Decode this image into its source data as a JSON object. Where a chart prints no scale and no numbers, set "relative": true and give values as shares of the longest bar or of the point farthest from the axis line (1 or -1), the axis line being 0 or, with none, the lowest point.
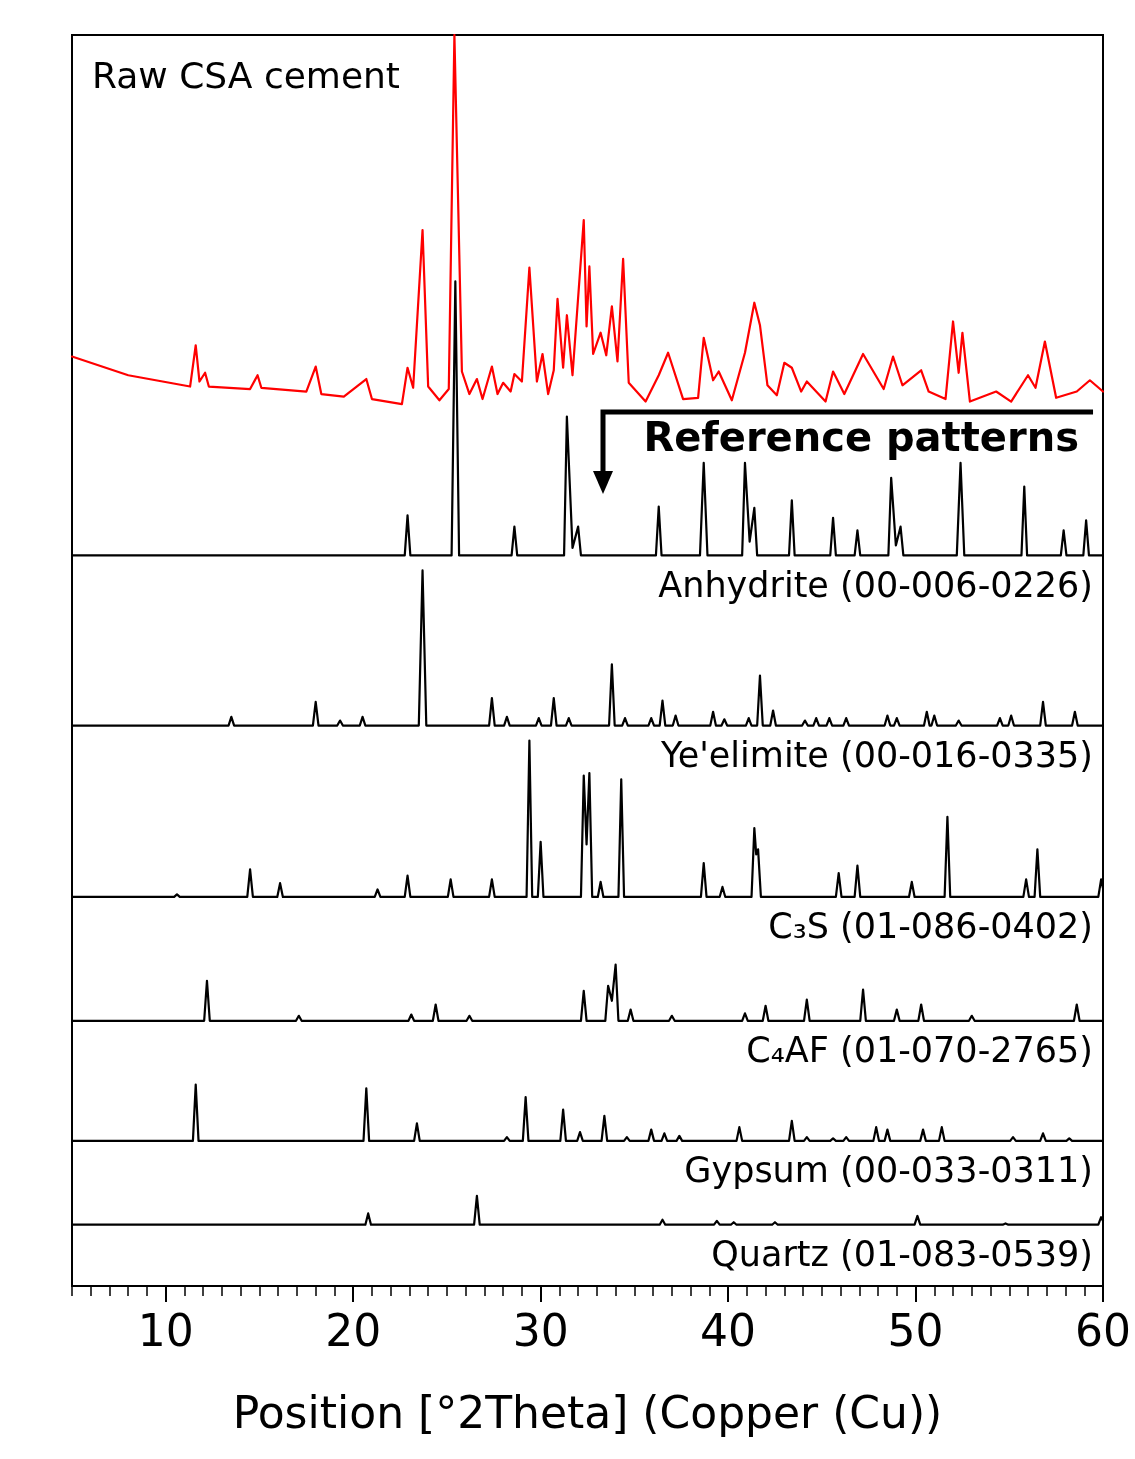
{
  "chart_data": {
    "type": "line",
    "relative": true,
    "xlabel": "Position [°2Theta] (Copper (Cu))",
    "xlim": [
      5,
      60
    ],
    "xticks": [
      {
        "value": 5,
        "label": null
      },
      {
        "value": 6,
        "label": null
      },
      {
        "value": 7,
        "label": null
      },
      {
        "value": 8,
        "label": null
      },
      {
        "value": 9,
        "label": null
      },
      10,
      {
        "value": 11,
        "label": null
      },
      {
        "value": 12,
        "label": null
      },
      {
        "value": 13,
        "label": null
      },
      {
        "value": 14,
        "label": null
      },
      {
        "value": 15,
        "label": null
      },
      {
        "value": 16,
        "label": null
      },
      {
        "value": 17,
        "label": null
      },
      {
        "value": 18,
        "label": null
      },
      {
        "value": 19,
        "label": null
      },
      20,
      {
        "value": 21,
        "label": null
      },
      {
        "value": 22,
        "label": null
      },
      {
        "value": 23,
        "label": null
      },
      {
        "value": 24,
        "label": null
      },
      {
        "value": 25,
        "label": null
      },
      {
        "value": 26,
        "label": null
      },
      {
        "value": 27,
        "label": null
      },
      {
        "value": 28,
        "label": null
      },
      {
        "value": 29,
        "label": null
      },
      30,
      {
        "value": 31,
        "label": null
      },
      {
        "value": 32,
        "label": null
      },
      {
        "value": 33,
        "label": null
      },
      {
        "value": 34,
        "label": null
      },
      {
        "value": 35,
        "label": null
      },
      {
        "value": 36,
        "label": null
      },
      {
        "value": 37,
        "label": null
      },
      {
        "value": 38,
        "label": null
      },
      {
        "value": 39,
        "label": null
      },
      40,
      {
        "value": 41,
        "label": null
      },
      {
        "value": 42,
        "label": null
      },
      {
        "value": 43,
        "label": null
      },
      {
        "value": 44,
        "label": null
      },
      {
        "value": 45,
        "label": null
      },
      {
        "value": 46,
        "label": null
      },
      {
        "value": 47,
        "label": null
      },
      {
        "value": 48,
        "label": null
      },
      {
        "value": 49,
        "label": null
      },
      50,
      {
        "value": 51,
        "label": null
      },
      {
        "value": 52,
        "label": null
      },
      {
        "value": 53,
        "label": null
      },
      {
        "value": 54,
        "label": null
      },
      {
        "value": 55,
        "label": null
      },
      {
        "value": 56,
        "label": null
      },
      {
        "value": 57,
        "label": null
      },
      {
        "value": 58,
        "label": null
      },
      {
        "value": 59,
        "label": null
      },
      60
    ],
    "annotations": [
      "Raw CSA cement",
      "Reference patterns"
    ],
    "series": [
      {
        "color": "#ff0000",
        "x": [
          5,
          8,
          11.3,
          11.6,
          11.8,
          12.1,
          12.3,
          14.5,
          14.9,
          15.1,
          17.5,
          18.0,
          18.3,
          19.5,
          20.7,
          21.0,
          22.6,
          22.9,
          23.2,
          23.7,
          24.0,
          24.6,
          25.1,
          25.4,
          25.8,
          26.2,
          26.6,
          26.9,
          27.4,
          27.7,
          28.0,
          28.4,
          28.6,
          29.0,
          29.4,
          29.8,
          30.1,
          30.4,
          30.7,
          30.9,
          31.2,
          31.4,
          31.7,
          32.3,
          32.45,
          32.6,
          32.8,
          33.2,
          33.5,
          33.8,
          34.1,
          34.4,
          34.7,
          35.6,
          36.3,
          36.8,
          37.6,
          38.4,
          38.7,
          39.2,
          39.5,
          40.2,
          40.9,
          41.4,
          41.7,
          42.1,
          42.6,
          43.0,
          43.4,
          43.9,
          44.2,
          45.2,
          45.6,
          46.2,
          47.2,
          48.3,
          48.8,
          49.3,
          50.3,
          50.7,
          51.6,
          52.0,
          52.3,
          52.5,
          52.9,
          54.3,
          55.1,
          56.0,
          56.4,
          56.9,
          57.5,
          58.6,
          59.3,
          60.0
        ],
        "values": [
          0.743,
          0.728,
          0.719,
          0.752,
          0.723,
          0.73,
          0.719,
          0.717,
          0.728,
          0.718,
          0.715,
          0.735,
          0.713,
          0.711,
          0.725,
          0.709,
          0.705,
          0.734,
          0.718,
          0.844,
          0.719,
          0.708,
          0.717,
          1.0,
          0.731,
          0.713,
          0.725,
          0.709,
          0.735,
          0.713,
          0.722,
          0.715,
          0.729,
          0.723,
          0.814,
          0.723,
          0.745,
          0.713,
          0.732,
          0.789,
          0.734,
          0.776,
          0.728,
          0.852,
          0.767,
          0.815,
          0.745,
          0.762,
          0.744,
          0.783,
          0.739,
          0.821,
          0.722,
          0.707,
          0.728,
          0.746,
          0.709,
          0.71,
          0.758,
          0.724,
          0.731,
          0.708,
          0.746,
          0.786,
          0.768,
          0.72,
          0.712,
          0.738,
          0.734,
          0.715,
          0.723,
          0.707,
          0.731,
          0.713,
          0.745,
          0.717,
          0.743,
          0.72,
          0.732,
          0.715,
          0.709,
          0.771,
          0.73,
          0.762,
          0.707,
          0.715,
          0.707,
          0.728,
          0.718,
          0.755,
          0.71,
          0.715,
          0.724,
          0.715
        ]
      },
      {
        "name": "Anhydrite (00-006-0226)",
        "color": "#000000",
        "x": [
          5,
          22.75,
          22.9,
          23.05,
          25.25,
          25.45,
          25.65,
          28.45,
          28.6,
          28.75,
          31.25,
          31.4,
          31.7,
          32.0,
          32.15,
          36.15,
          36.3,
          36.45,
          38.5,
          38.7,
          38.9,
          40.75,
          40.9,
          41.15,
          41.4,
          41.55,
          43.25,
          43.4,
          43.55,
          45.45,
          45.6,
          45.75,
          46.75,
          46.9,
          47.05,
          48.55,
          48.7,
          48.95,
          49.2,
          49.35,
          52.2,
          52.4,
          52.6,
          55.65,
          55.8,
          55.95,
          57.75,
          57.9,
          58.05,
          58.95,
          59.1,
          59.25,
          60
        ],
        "values": [
          0.584,
          0.584,
          0.616,
          0.584,
          0.584,
          0.803,
          0.584,
          0.584,
          0.607,
          0.584,
          0.584,
          0.695,
          0.59,
          0.607,
          0.584,
          0.584,
          0.623,
          0.584,
          0.584,
          0.658,
          0.584,
          0.584,
          0.658,
          0.595,
          0.622,
          0.584,
          0.584,
          0.628,
          0.584,
          0.584,
          0.614,
          0.584,
          0.584,
          0.604,
          0.584,
          0.584,
          0.646,
          0.592,
          0.607,
          0.584,
          0.584,
          0.658,
          0.584,
          0.584,
          0.639,
          0.584,
          0.584,
          0.604,
          0.584,
          0.584,
          0.612,
          0.584,
          0.584
        ]
      },
      {
        "name": "Ye'elimite (00-016-0335)",
        "color": "#000000",
        "x": [
          5,
          13.35,
          13.5,
          13.65,
          17.85,
          18.0,
          18.15,
          19.15,
          19.3,
          19.45,
          20.35,
          20.5,
          20.65,
          23.5,
          23.7,
          23.9,
          27.25,
          27.4,
          27.55,
          28.05,
          28.2,
          28.35,
          29.75,
          29.9,
          30.05,
          30.55,
          30.7,
          30.85,
          31.35,
          31.5,
          31.65,
          33.65,
          33.8,
          33.95,
          34.35,
          34.5,
          34.65,
          35.75,
          35.9,
          36.05,
          36.35,
          36.5,
          36.65,
          37.05,
          37.2,
          37.35,
          39.05,
          39.2,
          39.35,
          39.65,
          39.8,
          39.95,
          40.95,
          41.1,
          41.25,
          41.55,
          41.7,
          41.85,
          42.25,
          42.4,
          42.55,
          43.95,
          44.1,
          44.25,
          44.55,
          44.7,
          44.85,
          45.25,
          45.4,
          45.55,
          46.15,
          46.3,
          46.45,
          48.35,
          48.5,
          48.65,
          48.85,
          49.0,
          49.15,
          50.45,
          50.6,
          50.75,
          50.85,
          51.0,
          51.15,
          52.15,
          52.3,
          52.45,
          54.35,
          54.5,
          54.65,
          54.95,
          55.1,
          55.25,
          56.65,
          56.8,
          56.95,
          58.35,
          58.5,
          58.65,
          60
        ],
        "values": [
          0.448,
          0.448,
          0.455,
          0.448,
          0.448,
          0.467,
          0.448,
          0.448,
          0.452,
          0.448,
          0.448,
          0.455,
          0.448,
          0.448,
          0.572,
          0.448,
          0.448,
          0.47,
          0.448,
          0.448,
          0.455,
          0.448,
          0.448,
          0.454,
          0.448,
          0.448,
          0.47,
          0.448,
          0.448,
          0.454,
          0.448,
          0.448,
          0.497,
          0.448,
          0.448,
          0.454,
          0.448,
          0.448,
          0.454,
          0.448,
          0.448,
          0.468,
          0.448,
          0.448,
          0.456,
          0.448,
          0.448,
          0.459,
          0.448,
          0.448,
          0.453,
          0.448,
          0.448,
          0.454,
          0.448,
          0.448,
          0.488,
          0.448,
          0.448,
          0.46,
          0.448,
          0.448,
          0.452,
          0.448,
          0.448,
          0.454,
          0.448,
          0.448,
          0.454,
          0.448,
          0.448,
          0.454,
          0.448,
          0.448,
          0.456,
          0.448,
          0.448,
          0.454,
          0.448,
          0.448,
          0.459,
          0.448,
          0.448,
          0.456,
          0.448,
          0.448,
          0.452,
          0.448,
          0.448,
          0.454,
          0.448,
          0.448,
          0.456,
          0.448,
          0.448,
          0.467,
          0.448,
          0.448,
          0.459,
          0.448,
          0.448
        ]
      },
      {
        "name": "C₃S (01-086-0402)",
        "color": "#000000",
        "x": [
          5,
          10.45,
          10.6,
          10.75,
          14.35,
          14.5,
          14.65,
          15.95,
          16.1,
          16.25,
          21.15,
          21.3,
          21.45,
          22.75,
          22.9,
          23.05,
          25.05,
          25.2,
          25.35,
          27.25,
          27.4,
          27.55,
          29.25,
          29.4,
          29.55,
          29.85,
          30.0,
          30.15,
          32.15,
          32.3,
          32.45,
          32.6,
          32.75,
          33.05,
          33.2,
          33.35,
          34.15,
          34.3,
          34.45,
          38.55,
          38.7,
          38.85,
          39.55,
          39.7,
          39.85,
          41.25,
          41.4,
          41.5,
          41.6,
          41.75,
          45.75,
          45.9,
          46.05,
          46.75,
          46.9,
          47.05,
          49.65,
          49.8,
          49.95,
          51.55,
          51.7,
          51.85,
          55.75,
          55.9,
          56.05,
          56.35,
          56.5,
          56.65,
          59.75,
          59.9,
          60
        ],
        "values": [
          0.311,
          0.311,
          0.313,
          0.311,
          0.311,
          0.333,
          0.311,
          0.311,
          0.322,
          0.311,
          0.311,
          0.317,
          0.311,
          0.311,
          0.328,
          0.311,
          0.311,
          0.325,
          0.311,
          0.311,
          0.325,
          0.311,
          0.311,
          0.436,
          0.311,
          0.311,
          0.355,
          0.311,
          0.311,
          0.408,
          0.353,
          0.41,
          0.311,
          0.311,
          0.323,
          0.311,
          0.311,
          0.405,
          0.311,
          0.311,
          0.338,
          0.311,
          0.311,
          0.319,
          0.311,
          0.311,
          0.366,
          0.345,
          0.349,
          0.311,
          0.311,
          0.33,
          0.311,
          0.311,
          0.336,
          0.311,
          0.311,
          0.323,
          0.311,
          0.311,
          0.375,
          0.311,
          0.311,
          0.325,
          0.311,
          0.311,
          0.349,
          0.311,
          0.311,
          0.325,
          0.318
        ]
      },
      {
        "name": "C₄AF (01-070-2765)",
        "color": "#000000",
        "x": [
          5,
          12.05,
          12.2,
          12.35,
          16.95,
          17.1,
          17.25,
          22.95,
          23.1,
          23.25,
          24.25,
          24.4,
          24.55,
          26.05,
          26.2,
          26.35,
          32.15,
          32.3,
          32.45,
          33.45,
          33.6,
          33.8,
          34.0,
          34.15,
          34.65,
          34.8,
          34.95,
          36.85,
          37.0,
          37.15,
          40.75,
          40.9,
          41.05,
          41.85,
          42.0,
          42.15,
          44.05,
          44.2,
          44.35,
          47.05,
          47.2,
          47.35,
          48.85,
          49.0,
          49.15,
          50.15,
          50.3,
          50.45,
          52.85,
          53.0,
          53.15,
          58.45,
          58.6,
          58.75,
          60
        ],
        "values": [
          0.212,
          0.212,
          0.244,
          0.212,
          0.212,
          0.216,
          0.212,
          0.212,
          0.217,
          0.212,
          0.212,
          0.225,
          0.212,
          0.212,
          0.216,
          0.212,
          0.212,
          0.236,
          0.212,
          0.212,
          0.24,
          0.228,
          0.257,
          0.212,
          0.212,
          0.221,
          0.212,
          0.212,
          0.216,
          0.212,
          0.212,
          0.218,
          0.212,
          0.212,
          0.224,
          0.212,
          0.212,
          0.229,
          0.212,
          0.212,
          0.237,
          0.212,
          0.212,
          0.221,
          0.212,
          0.212,
          0.225,
          0.212,
          0.212,
          0.216,
          0.212,
          0.212,
          0.225,
          0.212,
          0.212
        ]
      },
      {
        "name": "Gypsum (00-033-0311)",
        "color": "#000000",
        "x": [
          5,
          11.45,
          11.6,
          11.75,
          20.55,
          20.7,
          20.85,
          23.25,
          23.4,
          23.55,
          28.05,
          28.2,
          28.35,
          29.05,
          29.2,
          29.35,
          31.05,
          31.2,
          31.35,
          31.95,
          32.1,
          32.25,
          33.25,
          33.4,
          33.55,
          34.45,
          34.6,
          34.75,
          35.75,
          35.9,
          36.05,
          36.45,
          36.6,
          36.75,
          37.25,
          37.4,
          37.55,
          40.45,
          40.6,
          40.75,
          43.25,
          43.4,
          43.55,
          44.05,
          44.2,
          44.35,
          45.45,
          45.6,
          45.75,
          46.15,
          46.3,
          46.45,
          47.75,
          47.9,
          48.05,
          48.35,
          48.5,
          48.65,
          50.25,
          50.4,
          50.55,
          51.25,
          51.4,
          51.55,
          55.05,
          55.2,
          55.35,
          56.65,
          56.8,
          56.95,
          58.05,
          58.2,
          58.35,
          60
        ],
        "values": [
          0.116,
          0.116,
          0.161,
          0.116,
          0.116,
          0.158,
          0.116,
          0.116,
          0.13,
          0.116,
          0.116,
          0.119,
          0.116,
          0.116,
          0.151,
          0.116,
          0.116,
          0.141,
          0.116,
          0.116,
          0.123,
          0.116,
          0.116,
          0.136,
          0.116,
          0.116,
          0.119,
          0.116,
          0.116,
          0.125,
          0.116,
          0.116,
          0.122,
          0.116,
          0.116,
          0.12,
          0.116,
          0.116,
          0.127,
          0.116,
          0.116,
          0.132,
          0.116,
          0.116,
          0.119,
          0.116,
          0.116,
          0.118,
          0.116,
          0.116,
          0.119,
          0.116,
          0.116,
          0.127,
          0.116,
          0.116,
          0.125,
          0.116,
          0.116,
          0.125,
          0.116,
          0.116,
          0.127,
          0.116,
          0.116,
          0.119,
          0.116,
          0.116,
          0.122,
          0.116,
          0.116,
          0.118,
          0.116,
          0.116
        ]
      },
      {
        "name": "Quartz (01-083-0539)",
        "color": "#000000",
        "x": [
          5,
          20.65,
          20.8,
          20.95,
          26.45,
          26.6,
          26.75,
          36.35,
          36.5,
          36.65,
          39.25,
          39.4,
          39.55,
          40.15,
          40.3,
          40.45,
          42.35,
          42.5,
          42.65,
          49.95,
          50.1,
          50.25,
          54.65,
          54.8,
          54.95,
          59.75,
          59.9,
          60
        ],
        "values": [
          0.049,
          0.049,
          0.058,
          0.049,
          0.049,
          0.072,
          0.049,
          0.049,
          0.053,
          0.049,
          0.049,
          0.052,
          0.049,
          0.049,
          0.051,
          0.049,
          0.049,
          0.051,
          0.049,
          0.049,
          0.056,
          0.049,
          0.049,
          0.05,
          0.049,
          0.049,
          0.055,
          0.052
        ]
      }
    ]
  }
}
